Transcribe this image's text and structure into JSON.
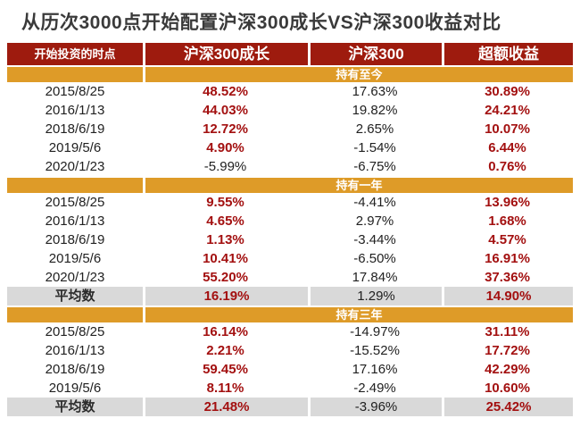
{
  "title": "从历次3000点开始配置沪深300成长VS沪深300收益对比",
  "colors": {
    "header_bg": "#9e1b0e",
    "band_bg": "#de9b28",
    "avg_row_bg": "#d9d9d9",
    "positive_red": "#a31010",
    "text_black": "#212121",
    "title_color": "#3a3a3a"
  },
  "table": {
    "columns": [
      {
        "label": "开始投资的时点"
      },
      {
        "label": "沪深300成长"
      },
      {
        "label": "沪深300"
      },
      {
        "label": "超额收益"
      }
    ],
    "sections": [
      {
        "band": "持有至今",
        "rows": [
          {
            "date": "2015/8/25",
            "values": [
              {
                "text": "48.52%",
                "style": "red"
              },
              {
                "text": "17.63%",
                "style": "black"
              },
              {
                "text": "30.89%",
                "style": "red"
              }
            ]
          },
          {
            "date": "2016/1/13",
            "values": [
              {
                "text": "44.03%",
                "style": "red"
              },
              {
                "text": "19.82%",
                "style": "black"
              },
              {
                "text": "24.21%",
                "style": "red"
              }
            ]
          },
          {
            "date": "2018/6/19",
            "values": [
              {
                "text": "12.72%",
                "style": "red"
              },
              {
                "text": "2.65%",
                "style": "black"
              },
              {
                "text": "10.07%",
                "style": "red"
              }
            ]
          },
          {
            "date": "2019/5/6",
            "values": [
              {
                "text": "4.90%",
                "style": "red"
              },
              {
                "text": "-1.54%",
                "style": "black"
              },
              {
                "text": "6.44%",
                "style": "red"
              }
            ]
          },
          {
            "date": "2020/1/23",
            "values": [
              {
                "text": "-5.99%",
                "style": "black"
              },
              {
                "text": "-6.75%",
                "style": "black"
              },
              {
                "text": "0.76%",
                "style": "red"
              }
            ]
          }
        ],
        "average": null
      },
      {
        "band": "持有一年",
        "rows": [
          {
            "date": "2015/8/25",
            "values": [
              {
                "text": "9.55%",
                "style": "red"
              },
              {
                "text": "-4.41%",
                "style": "black"
              },
              {
                "text": "13.96%",
                "style": "red"
              }
            ]
          },
          {
            "date": "2016/1/13",
            "values": [
              {
                "text": "4.65%",
                "style": "red"
              },
              {
                "text": "2.97%",
                "style": "black"
              },
              {
                "text": "1.68%",
                "style": "red"
              }
            ]
          },
          {
            "date": "2018/6/19",
            "values": [
              {
                "text": "1.13%",
                "style": "red"
              },
              {
                "text": "-3.44%",
                "style": "black"
              },
              {
                "text": "4.57%",
                "style": "red"
              }
            ]
          },
          {
            "date": "2019/5/6",
            "values": [
              {
                "text": "10.41%",
                "style": "red"
              },
              {
                "text": "-6.50%",
                "style": "black"
              },
              {
                "text": "16.91%",
                "style": "red"
              }
            ]
          },
          {
            "date": "2020/1/23",
            "values": [
              {
                "text": "55.20%",
                "style": "red"
              },
              {
                "text": "17.84%",
                "style": "black"
              },
              {
                "text": "37.36%",
                "style": "red"
              }
            ]
          }
        ],
        "average": {
          "label": "平均数",
          "values": [
            {
              "text": "16.19%",
              "style": "red"
            },
            {
              "text": "1.29%",
              "style": "black"
            },
            {
              "text": "14.90%",
              "style": "red"
            }
          ]
        }
      },
      {
        "band": "持有三年",
        "rows": [
          {
            "date": "2015/8/25",
            "values": [
              {
                "text": "16.14%",
                "style": "red"
              },
              {
                "text": "-14.97%",
                "style": "black"
              },
              {
                "text": "31.11%",
                "style": "red"
              }
            ]
          },
          {
            "date": "2016/1/13",
            "values": [
              {
                "text": "2.21%",
                "style": "red"
              },
              {
                "text": "-15.52%",
                "style": "black"
              },
              {
                "text": "17.72%",
                "style": "red"
              }
            ]
          },
          {
            "date": "2018/6/19",
            "values": [
              {
                "text": "59.45%",
                "style": "red"
              },
              {
                "text": "17.16%",
                "style": "black"
              },
              {
                "text": "42.29%",
                "style": "red"
              }
            ]
          },
          {
            "date": "2019/5/6",
            "values": [
              {
                "text": "8.11%",
                "style": "red"
              },
              {
                "text": "-2.49%",
                "style": "black"
              },
              {
                "text": "10.60%",
                "style": "red"
              }
            ]
          }
        ],
        "average": {
          "label": "平均数",
          "values": [
            {
              "text": "21.48%",
              "style": "red"
            },
            {
              "text": "-3.96%",
              "style": "black"
            },
            {
              "text": "25.42%",
              "style": "red"
            }
          ]
        }
      }
    ]
  },
  "chart_data": {
    "type": "table",
    "title": "从历次3000点开始配置沪深300成长VS沪深300收益对比",
    "columns": [
      "开始投资的时点",
      "沪深300成长",
      "沪深300",
      "超额收益"
    ],
    "sections": [
      {
        "name": "持有至今",
        "rows": [
          [
            "2015/8/25",
            "48.52%",
            "17.63%",
            "30.89%"
          ],
          [
            "2016/1/13",
            "44.03%",
            "19.82%",
            "24.21%"
          ],
          [
            "2018/6/19",
            "12.72%",
            "2.65%",
            "10.07%"
          ],
          [
            "2019/5/6",
            "4.90%",
            "-1.54%",
            "6.44%"
          ],
          [
            "2020/1/23",
            "-5.99%",
            "-6.75%",
            "0.76%"
          ]
        ]
      },
      {
        "name": "持有一年",
        "rows": [
          [
            "2015/8/25",
            "9.55%",
            "-4.41%",
            "13.96%"
          ],
          [
            "2016/1/13",
            "4.65%",
            "2.97%",
            "1.68%"
          ],
          [
            "2018/6/19",
            "1.13%",
            "-3.44%",
            "4.57%"
          ],
          [
            "2019/5/6",
            "10.41%",
            "-6.50%",
            "16.91%"
          ],
          [
            "2020/1/23",
            "55.20%",
            "17.84%",
            "37.36%"
          ],
          [
            "平均数",
            "16.19%",
            "1.29%",
            "14.90%"
          ]
        ]
      },
      {
        "name": "持有三年",
        "rows": [
          [
            "2015/8/25",
            "16.14%",
            "-14.97%",
            "31.11%"
          ],
          [
            "2016/1/13",
            "2.21%",
            "-15.52%",
            "17.72%"
          ],
          [
            "2018/6/19",
            "59.45%",
            "17.16%",
            "42.29%"
          ],
          [
            "2019/5/6",
            "8.11%",
            "-2.49%",
            "10.60%"
          ],
          [
            "平均数",
            "21.48%",
            "-3.96%",
            "25.42%"
          ]
        ]
      }
    ]
  }
}
